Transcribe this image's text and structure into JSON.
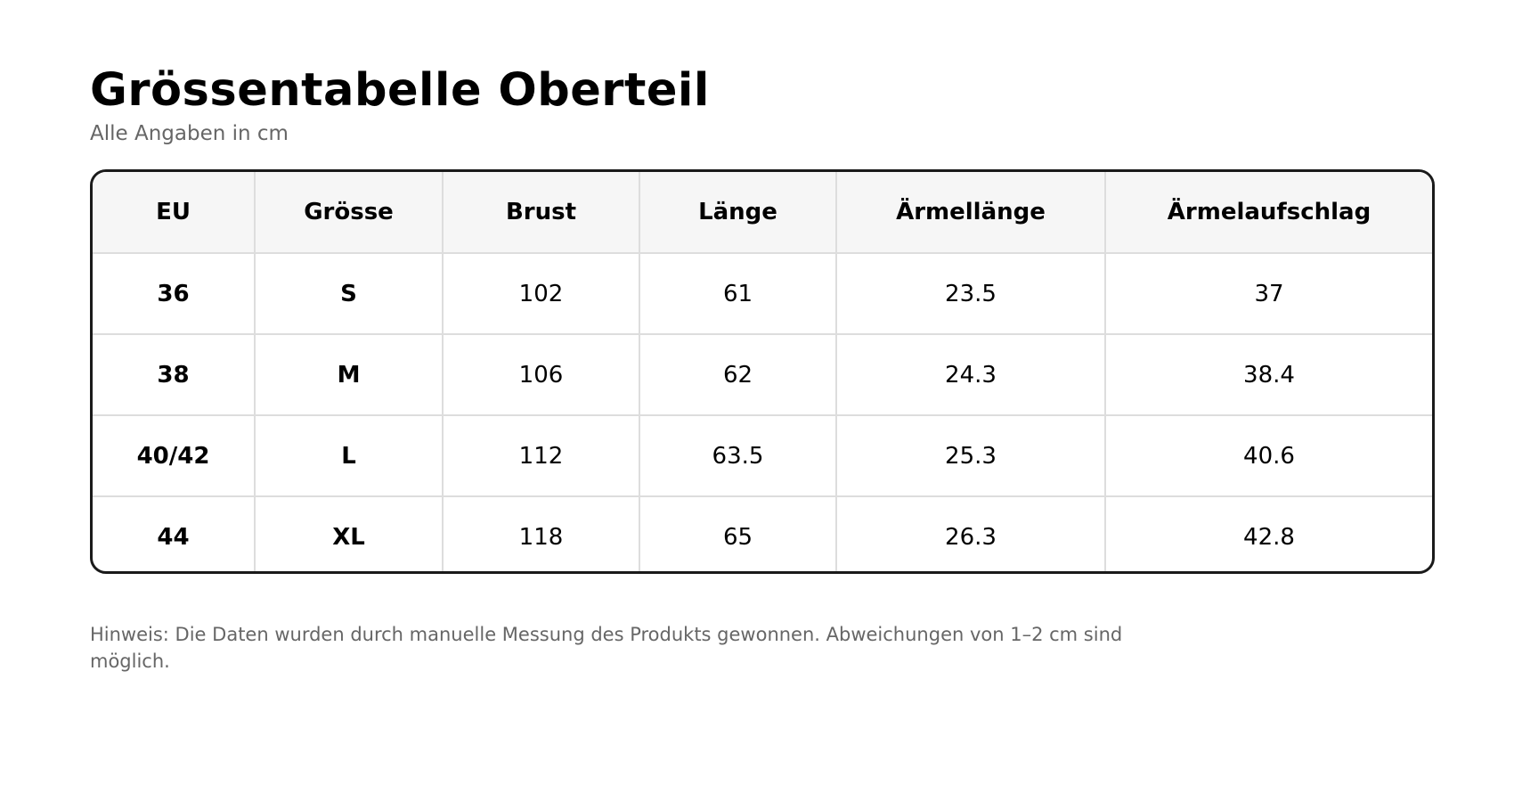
{
  "title": "Grössentabelle Oberteil",
  "subtitle": "Alle Angaben in cm",
  "table": {
    "headers": [
      "EU",
      "Grösse",
      "Brust",
      "Länge",
      "Ärmellänge",
      "Ärmelaufschlag"
    ],
    "rows": [
      [
        "36",
        "S",
        "102",
        "61",
        "23.5",
        "37"
      ],
      [
        "38",
        "M",
        "106",
        "62",
        "24.3",
        "38.4"
      ],
      [
        "40/42",
        "L",
        "112",
        "63.5",
        "25.3",
        "40.6"
      ],
      [
        "44",
        "XL",
        "118",
        "65",
        "26.3",
        "42.8"
      ]
    ]
  },
  "note": "Hinweis: Die Daten wurden durch manuelle Messung des Produkts gewonnen. Abweichungen von 1–2 cm sind möglich."
}
